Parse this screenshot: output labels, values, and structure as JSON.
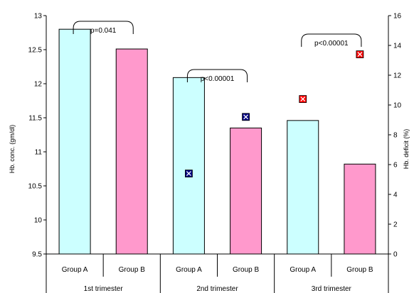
{
  "chart_data": {
    "type": "bar",
    "title": "",
    "ylabel": "Hb. conc. (gm/dl)",
    "y2label": "Hb. deficit (%)",
    "ylim": [
      9.5,
      13
    ],
    "y2lim": [
      0,
      16
    ],
    "yticks": [
      "13",
      "12.5",
      "12",
      "11.5",
      "11",
      "10.5",
      "10",
      "9.5"
    ],
    "y2ticks": [
      "16",
      "14",
      "12",
      "10",
      "8",
      "6",
      "4",
      "2",
      "0"
    ],
    "categories": [
      "Group A",
      "Group B",
      "Group A",
      "Group B",
      "Group A",
      "Group B"
    ],
    "groups": [
      "1st trimester",
      "2nd trimester",
      "3rd trimester"
    ],
    "bars": {
      "values": [
        12.8,
        12.51,
        12.09,
        11.35,
        11.46,
        10.82
      ],
      "colors": [
        "#ccffff",
        "#ff99cc",
        "#ccffff",
        "#ff99cc",
        "#ccffff",
        "#ff99cc"
      ]
    },
    "deficit_markers": [
      {
        "category_index": 2,
        "value": 5.4,
        "color": "#000080"
      },
      {
        "category_index": 3,
        "value": 9.2,
        "color": "#000080"
      },
      {
        "category_index": 4,
        "value": 10.4,
        "color": "#ff0000"
      },
      {
        "category_index": 5,
        "value": 13.4,
        "color": "#ff0000"
      }
    ],
    "annotations": [
      "p=0.041",
      "p<0.00001",
      "p<0.00001"
    ],
    "grid": false,
    "legend": "none"
  }
}
